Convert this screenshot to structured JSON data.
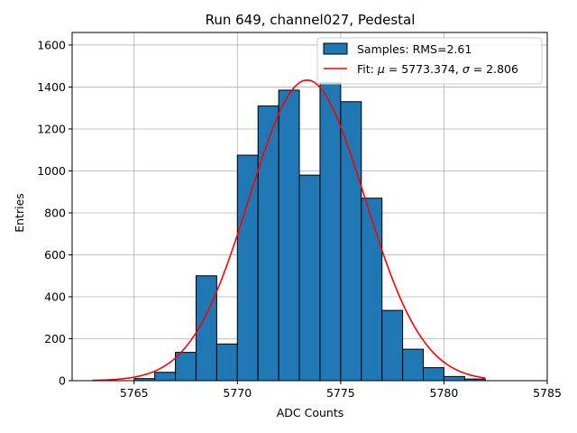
{
  "chart_data": {
    "type": "bar",
    "title": "Run 649, channel027, Pedestal",
    "xlabel": "ADC Counts",
    "ylabel": "Entries",
    "xlim": [
      5762,
      5785
    ],
    "ylim": [
      0,
      1660
    ],
    "xticks": [
      5765,
      5770,
      5775,
      5780,
      5785
    ],
    "yticks": [
      0,
      200,
      400,
      600,
      800,
      1000,
      1200,
      1400,
      1600
    ],
    "grid": true,
    "bin_width": 1,
    "bins": [
      {
        "x": 5765,
        "value": 10
      },
      {
        "x": 5766,
        "value": 40
      },
      {
        "x": 5767,
        "value": 135
      },
      {
        "x": 5768,
        "value": 500
      },
      {
        "x": 5769,
        "value": 175
      },
      {
        "x": 5770,
        "value": 1075
      },
      {
        "x": 5771,
        "value": 1310
      },
      {
        "x": 5772,
        "value": 1385
      },
      {
        "x": 5773,
        "value": 980
      },
      {
        "x": 5774,
        "value": 1420
      },
      {
        "x": 5775,
        "value": 1330
      },
      {
        "x": 5776,
        "value": 870
      },
      {
        "x": 5777,
        "value": 335
      },
      {
        "x": 5778,
        "value": 150
      },
      {
        "x": 5779,
        "value": 62
      },
      {
        "x": 5780,
        "value": 20
      },
      {
        "x": 5781,
        "value": 8
      }
    ],
    "fit": {
      "mu": 5773.374,
      "sigma": 2.806,
      "amplitude": 1433,
      "x_range": [
        5763,
        5782
      ]
    },
    "legend": {
      "position": "top-right",
      "entries": [
        {
          "label": "Samples: RMS=2.61",
          "color": "#1f77b4",
          "kind": "patch"
        },
        {
          "label_prefix": "Fit: ",
          "mu_symbol": "μ",
          "mu_text": " = 5773.374, ",
          "sigma_symbol": "σ",
          "sigma_text": " = 2.806",
          "color": "#ff0000",
          "kind": "line"
        }
      ]
    },
    "colors": {
      "bar": "#1f77b4",
      "bar_edge": "#000000",
      "fit": "#ff0000",
      "grid": "#b0b0b0"
    }
  }
}
